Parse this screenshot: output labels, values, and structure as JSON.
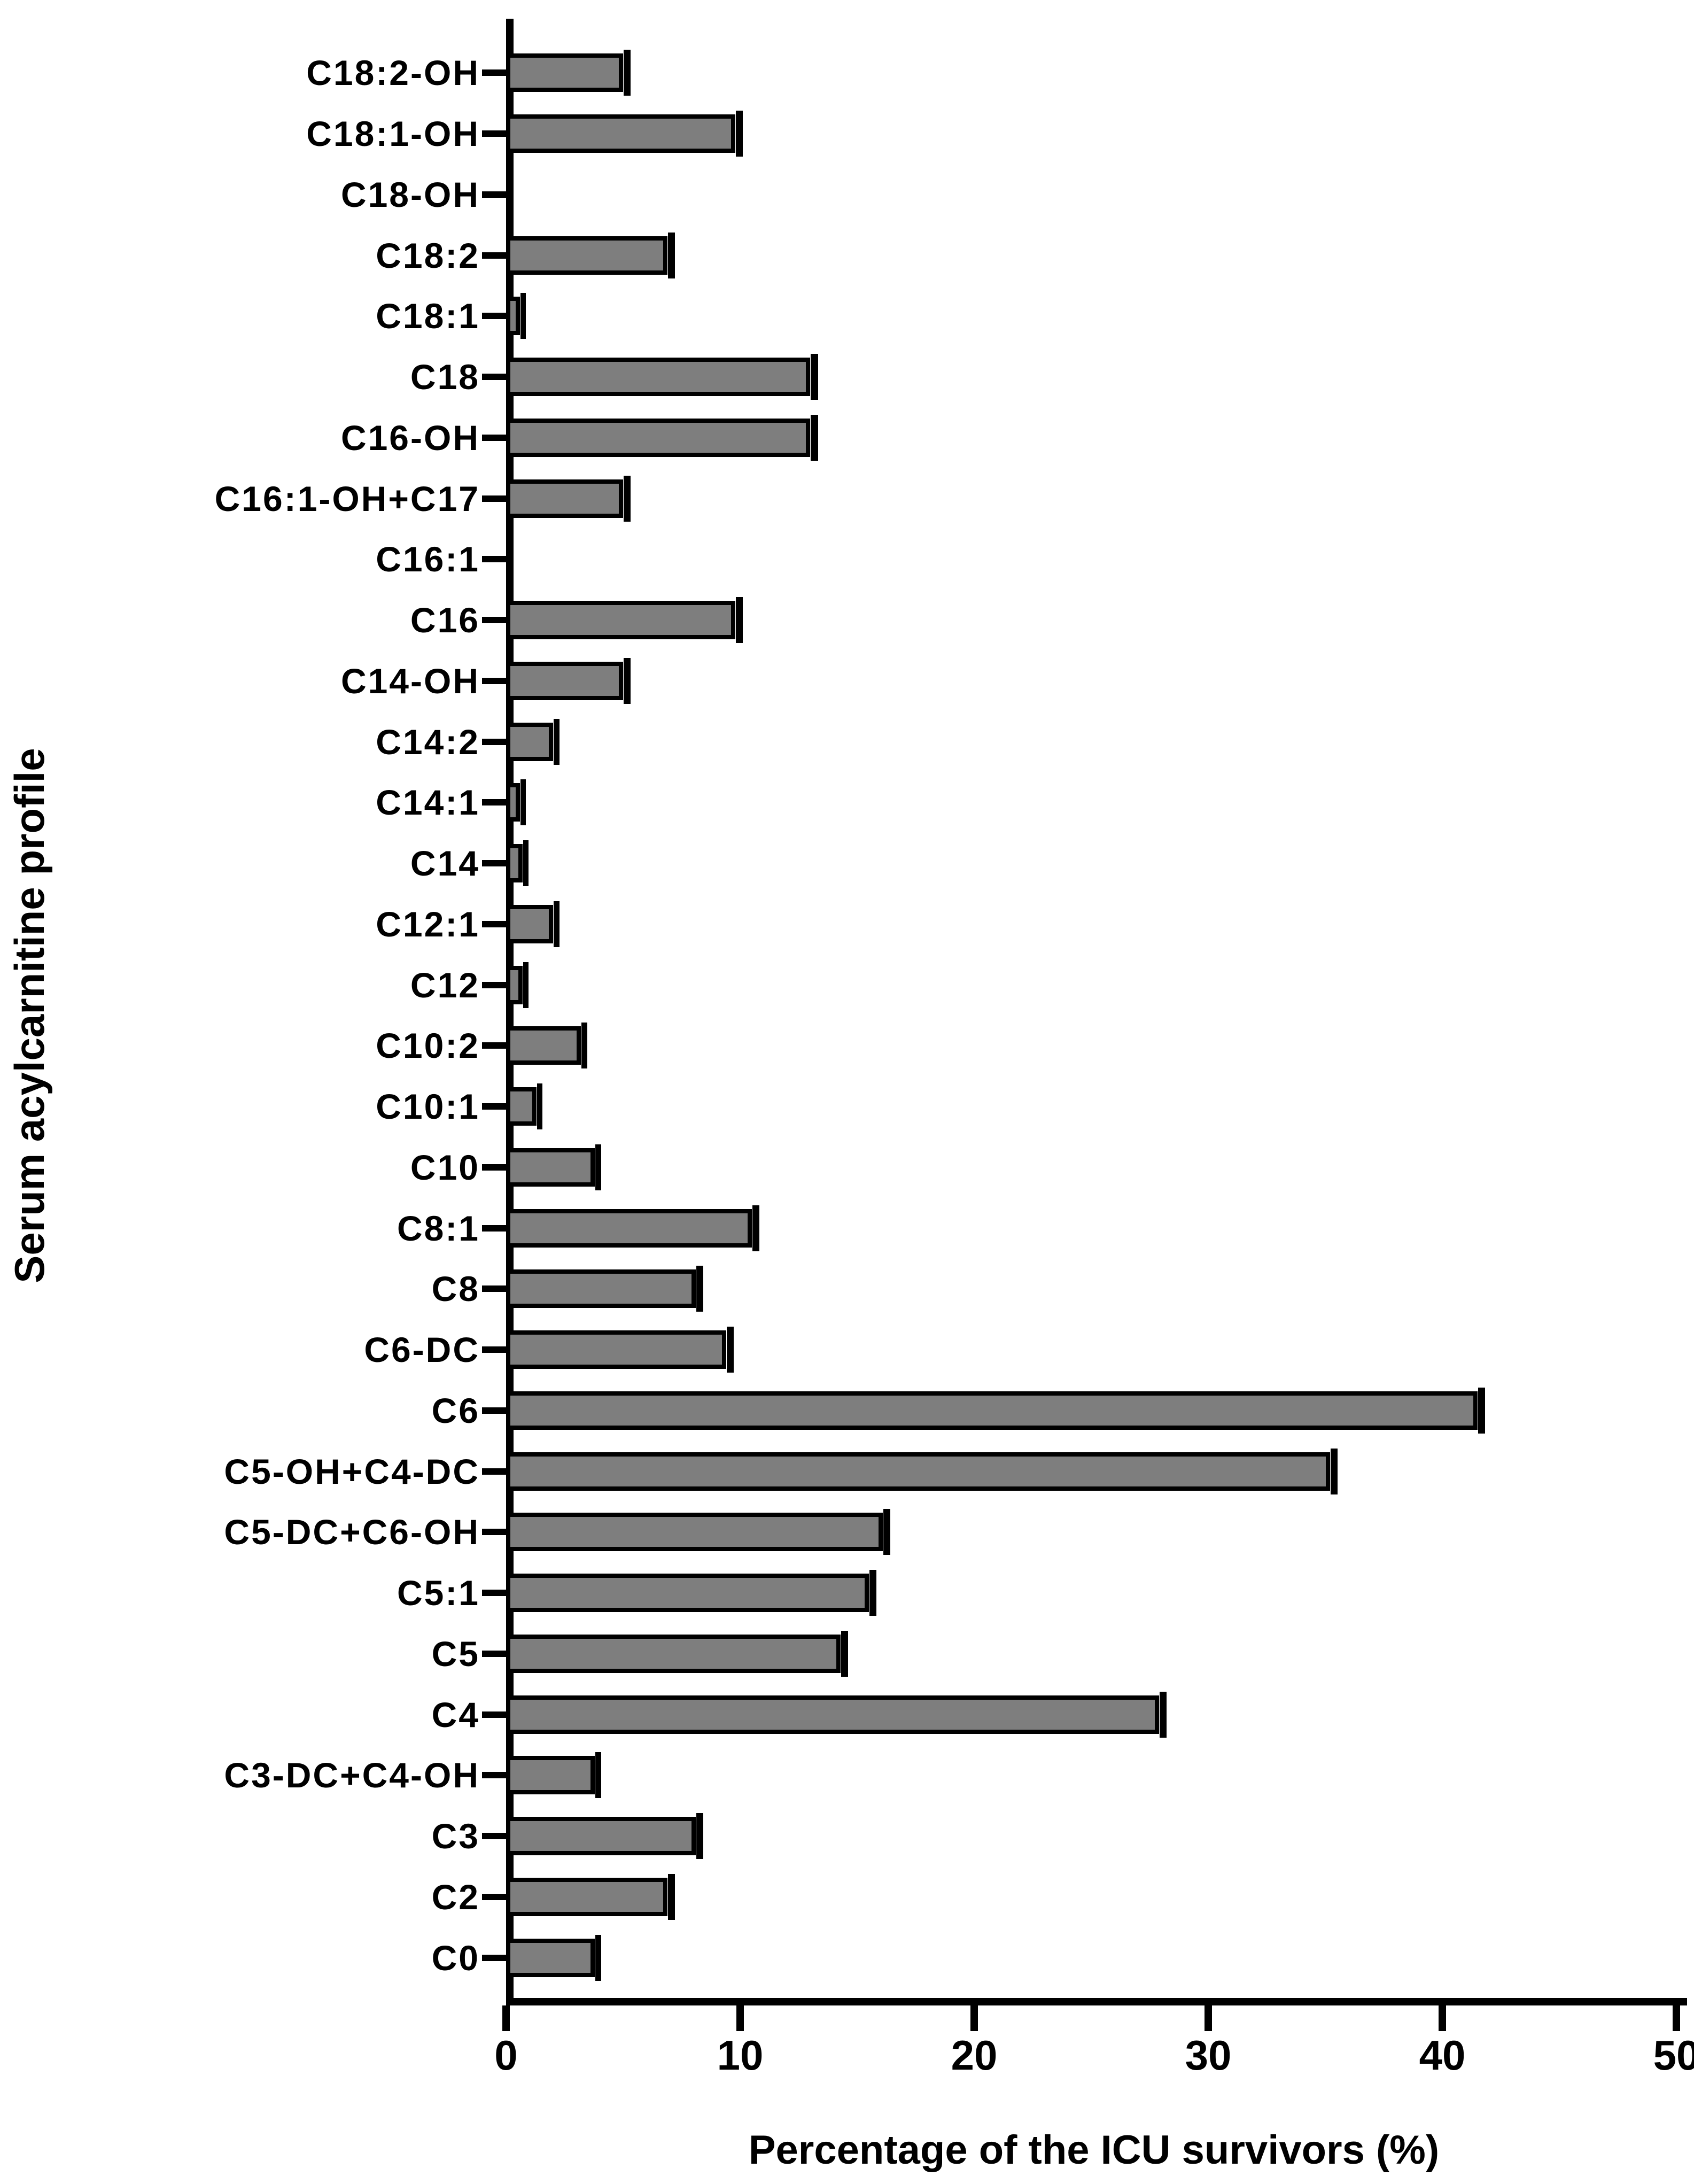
{
  "chart_data": {
    "type": "bar",
    "orientation": "horizontal",
    "title": "",
    "xlabel": "Percentage of the ICU survivors (%)",
    "ylabel": "Serum acylcarnitine profile",
    "xlim": [
      0,
      50
    ],
    "x_ticks": [
      0,
      10,
      20,
      30,
      40,
      50
    ],
    "x_tick_labels": [
      "0",
      "10",
      "20",
      "30",
      "40",
      "50"
    ],
    "grid": false,
    "legend": "none",
    "bar_color": "#7e7e7e",
    "bar_border_color": "#000000",
    "error_caps": true,
    "categories": [
      "C18:2-OH",
      "C18:1-OH",
      "C18-OH",
      "C18:2",
      "C18:1",
      "C18",
      "C16-OH",
      "C16:1-OH+C17",
      "C16:1",
      "C16",
      "C14-OH",
      "C14:2",
      "C14:1",
      "C14",
      "C12:1",
      "C12",
      "C10:2",
      "C10:1",
      "C10",
      "C8:1",
      "C8",
      "C6-DC",
      "C6",
      "C5-OH+C4-DC",
      "C5-DC+C6-OH",
      "C5:1",
      "C5",
      "C4",
      "C3-DC+C4-OH",
      "C3",
      "C2",
      "C0"
    ],
    "values": [
      5.0,
      9.8,
      0,
      6.9,
      0.6,
      13.0,
      13.0,
      5.0,
      0,
      9.8,
      5.0,
      2.0,
      0.6,
      0.7,
      2.0,
      0.7,
      3.2,
      1.3,
      3.8,
      10.5,
      8.1,
      9.4,
      41.5,
      35.2,
      16.1,
      15.5,
      14.3,
      27.9,
      3.8,
      8.1,
      6.9,
      3.8
    ],
    "errors": [
      0.3,
      0.3,
      0,
      0.3,
      0.2,
      0.3,
      0.3,
      0.3,
      0,
      0.3,
      0.3,
      0.25,
      0.2,
      0.2,
      0.25,
      0.2,
      0.25,
      0.2,
      0.25,
      0.3,
      0.3,
      0.3,
      0.3,
      0.3,
      0.3,
      0.3,
      0.3,
      0.3,
      0.25,
      0.3,
      0.3,
      0.25
    ]
  }
}
